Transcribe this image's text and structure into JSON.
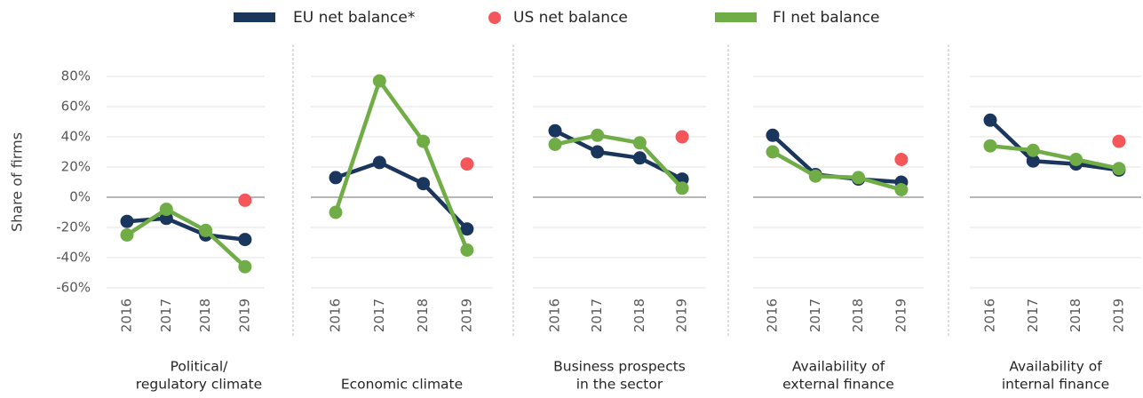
{
  "chart_data": [
    {
      "type": "line",
      "title_lines": [
        "Political/",
        "regulatory climate"
      ],
      "y_label": "Share of firms",
      "categories": [
        "2016",
        "2017",
        "2018",
        "2019"
      ],
      "ylim": [
        -60,
        80
      ],
      "yticks": [
        {
          "value": 80,
          "label": "80%"
        },
        {
          "value": 60,
          "label": "60%"
        },
        {
          "value": 40,
          "label": "40%"
        },
        {
          "value": 20,
          "label": "20%"
        },
        {
          "value": 0,
          "label": "0%"
        },
        {
          "value": -20,
          "label": "-20%"
        },
        {
          "value": -40,
          "label": "-40%"
        },
        {
          "value": -60,
          "label": "-60%"
        }
      ],
      "grid": true,
      "series": [
        {
          "name": "EU net balance*",
          "color": "#1b365d",
          "values": [
            -16,
            -14,
            -25,
            -28
          ]
        },
        {
          "name": "US net balance",
          "color": "#f4565a",
          "values": [
            null,
            null,
            null,
            -2
          ]
        },
        {
          "name": "FI net balance",
          "color": "#70ad47",
          "values": [
            -25,
            -8,
            -22,
            -46
          ]
        }
      ]
    },
    {
      "type": "line",
      "title_lines": [
        "Economic climate"
      ],
      "categories": [
        "2016",
        "2017",
        "2018",
        "2019"
      ],
      "series": [
        {
          "color": "#1b365d",
          "values": [
            13,
            23,
            9,
            -21
          ]
        },
        {
          "color": "#f4565a",
          "values": [
            null,
            null,
            null,
            22
          ]
        },
        {
          "color": "#70ad47",
          "values": [
            -10,
            77,
            37,
            -35
          ]
        }
      ]
    },
    {
      "type": "line",
      "title_lines": [
        "Business prospects",
        "in the sector"
      ],
      "categories": [
        "2016",
        "2017",
        "2018",
        "2019"
      ],
      "series": [
        {
          "color": "#1b365d",
          "values": [
            44,
            30,
            26,
            12
          ]
        },
        {
          "color": "#f4565a",
          "values": [
            null,
            null,
            null,
            40
          ]
        },
        {
          "color": "#70ad47",
          "values": [
            35,
            41,
            36,
            6
          ]
        }
      ]
    },
    {
      "type": "line",
      "title_lines": [
        "Availability of",
        "external finance"
      ],
      "categories": [
        "2016",
        "2017",
        "2018",
        "2019"
      ],
      "series": [
        {
          "color": "#1b365d",
          "values": [
            41,
            15,
            12,
            10
          ]
        },
        {
          "color": "#f4565a",
          "values": [
            null,
            null,
            null,
            25
          ]
        },
        {
          "color": "#70ad47",
          "values": [
            30,
            14,
            13,
            5
          ]
        }
      ]
    },
    {
      "type": "line",
      "title_lines": [
        "Availability of",
        "internal finance"
      ],
      "categories": [
        "2016",
        "2017",
        "2018",
        "2019"
      ],
      "series": [
        {
          "color": "#1b365d",
          "values": [
            51,
            24,
            22,
            18
          ]
        },
        {
          "color": "#f4565a",
          "values": [
            null,
            null,
            null,
            37
          ]
        },
        {
          "color": "#70ad47",
          "values": [
            34,
            31,
            25,
            19
          ]
        }
      ]
    }
  ]
}
